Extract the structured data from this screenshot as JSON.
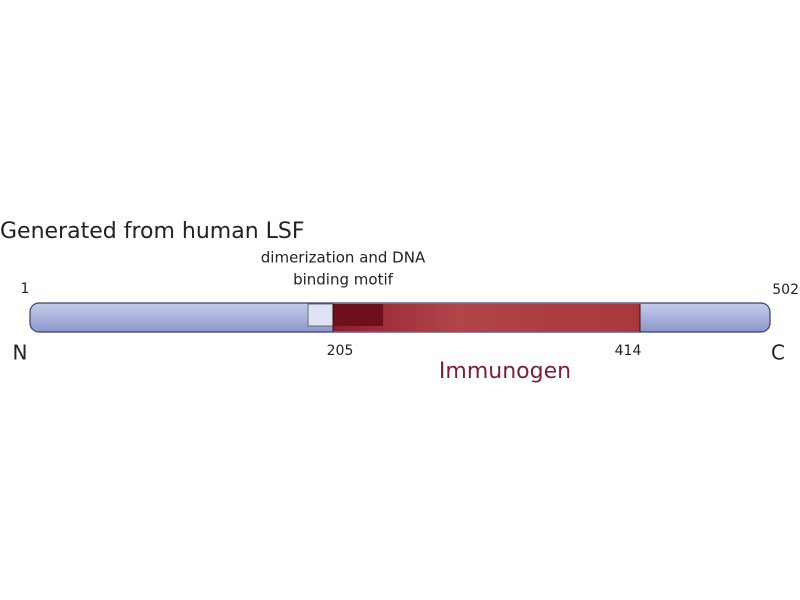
{
  "title": "Generated from human LSF",
  "motif_label": [
    "dimerization and DNA",
    "binding motif"
  ],
  "start": "1",
  "end": "502",
  "n_terminus": "N",
  "c_terminus": "C",
  "immunogen_start": "205",
  "immunogen_end": "414",
  "immunogen_label": "Immunogen"
}
